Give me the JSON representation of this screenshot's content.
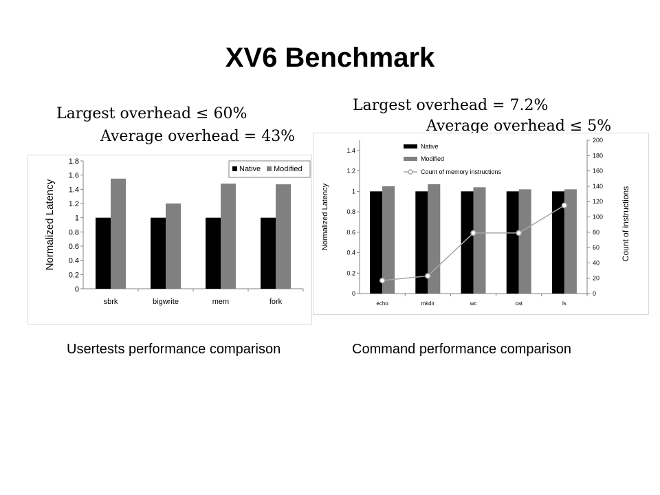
{
  "slide": {
    "title": "XV6 Benchmark"
  },
  "left_panel": {
    "formula_line1": "Largest overhead ≤ 60%",
    "formula_line2": "Average overhead = 43%",
    "caption": "Usertests performance comparison"
  },
  "right_panel": {
    "formula_line1": "Largest overhead = 7.2%",
    "formula_line2": "Average overhead ≤ 5%",
    "caption": "Command performance comparison"
  },
  "colors": {
    "native": "#000000",
    "modified": "#808080",
    "line": "#a6a6a6"
  },
  "chart_data": [
    {
      "type": "bar",
      "categories": [
        "sbrk",
        "bigwrite",
        "mem",
        "fork"
      ],
      "series": [
        {
          "name": "Native",
          "values": [
            1,
            1,
            1,
            1
          ]
        },
        {
          "name": "Modified",
          "values": [
            1.55,
            1.2,
            1.48,
            1.47
          ]
        }
      ],
      "ylabel": "Normalized Latency",
      "ylim": [
        0,
        1.8
      ],
      "yticks": [
        "0",
        "0.2",
        "0.4",
        "0.6",
        "0.8",
        "1",
        "1.2",
        "1.4",
        "1.6",
        "1.8"
      ],
      "legend": "top-right",
      "grid": false
    },
    {
      "type": "bar",
      "categories": [
        "echo",
        "mkdir",
        "wc",
        "cat",
        "ls"
      ],
      "series": [
        {
          "name": "Native",
          "values": [
            1,
            1,
            1,
            1,
            1
          ]
        },
        {
          "name": "Modified",
          "values": [
            1.05,
            1.07,
            1.04,
            1.02,
            1.02
          ]
        }
      ],
      "line_series": {
        "name": "Count of memory instructions",
        "values": [
          17,
          23,
          79,
          79,
          115
        ],
        "axis": "right"
      },
      "ylabel": "Normalized Latency",
      "ylim": [
        0,
        1.5
      ],
      "yticks": [
        "0",
        "0.2",
        "0.4",
        "0.6",
        "0.8",
        "1",
        "1.2",
        "1.4"
      ],
      "y2label": "Count of instructions",
      "y2lim": [
        0,
        200
      ],
      "y2ticks": [
        "0",
        "20",
        "40",
        "60",
        "80",
        "100",
        "120",
        "140",
        "160",
        "180",
        "200"
      ],
      "legend": "top-left",
      "grid": false
    }
  ]
}
